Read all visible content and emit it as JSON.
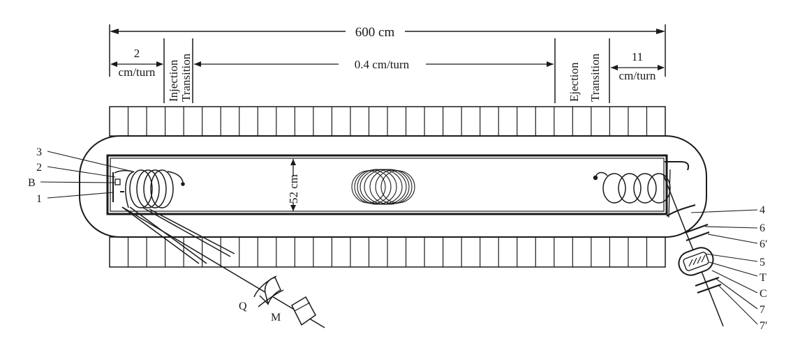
{
  "dimensions": {
    "total_length": "600 cm",
    "height": "52 cm",
    "rate_injection_value": "2",
    "rate_injection_unit": "cm/turn",
    "rate_middle": "0.4 cm/turn",
    "rate_ejection_value": "11",
    "rate_ejection_unit": "cm/turn"
  },
  "zones": {
    "injection_line1": "Injection",
    "injection_line2": "Transition",
    "ejection_line1": "Ejection",
    "ejection_line2": "Transition"
  },
  "labels_left": {
    "l3": "3",
    "l2": "2",
    "lB": "B",
    "l1": "1"
  },
  "labels_right": {
    "l4": "4",
    "l6": "6",
    "l6p": "6′",
    "l5": "5",
    "lT": "T",
    "lC": "C",
    "l7": "7",
    "l7p": "7′"
  },
  "labels_bottom": {
    "lQ": "Q",
    "lM": "M"
  }
}
